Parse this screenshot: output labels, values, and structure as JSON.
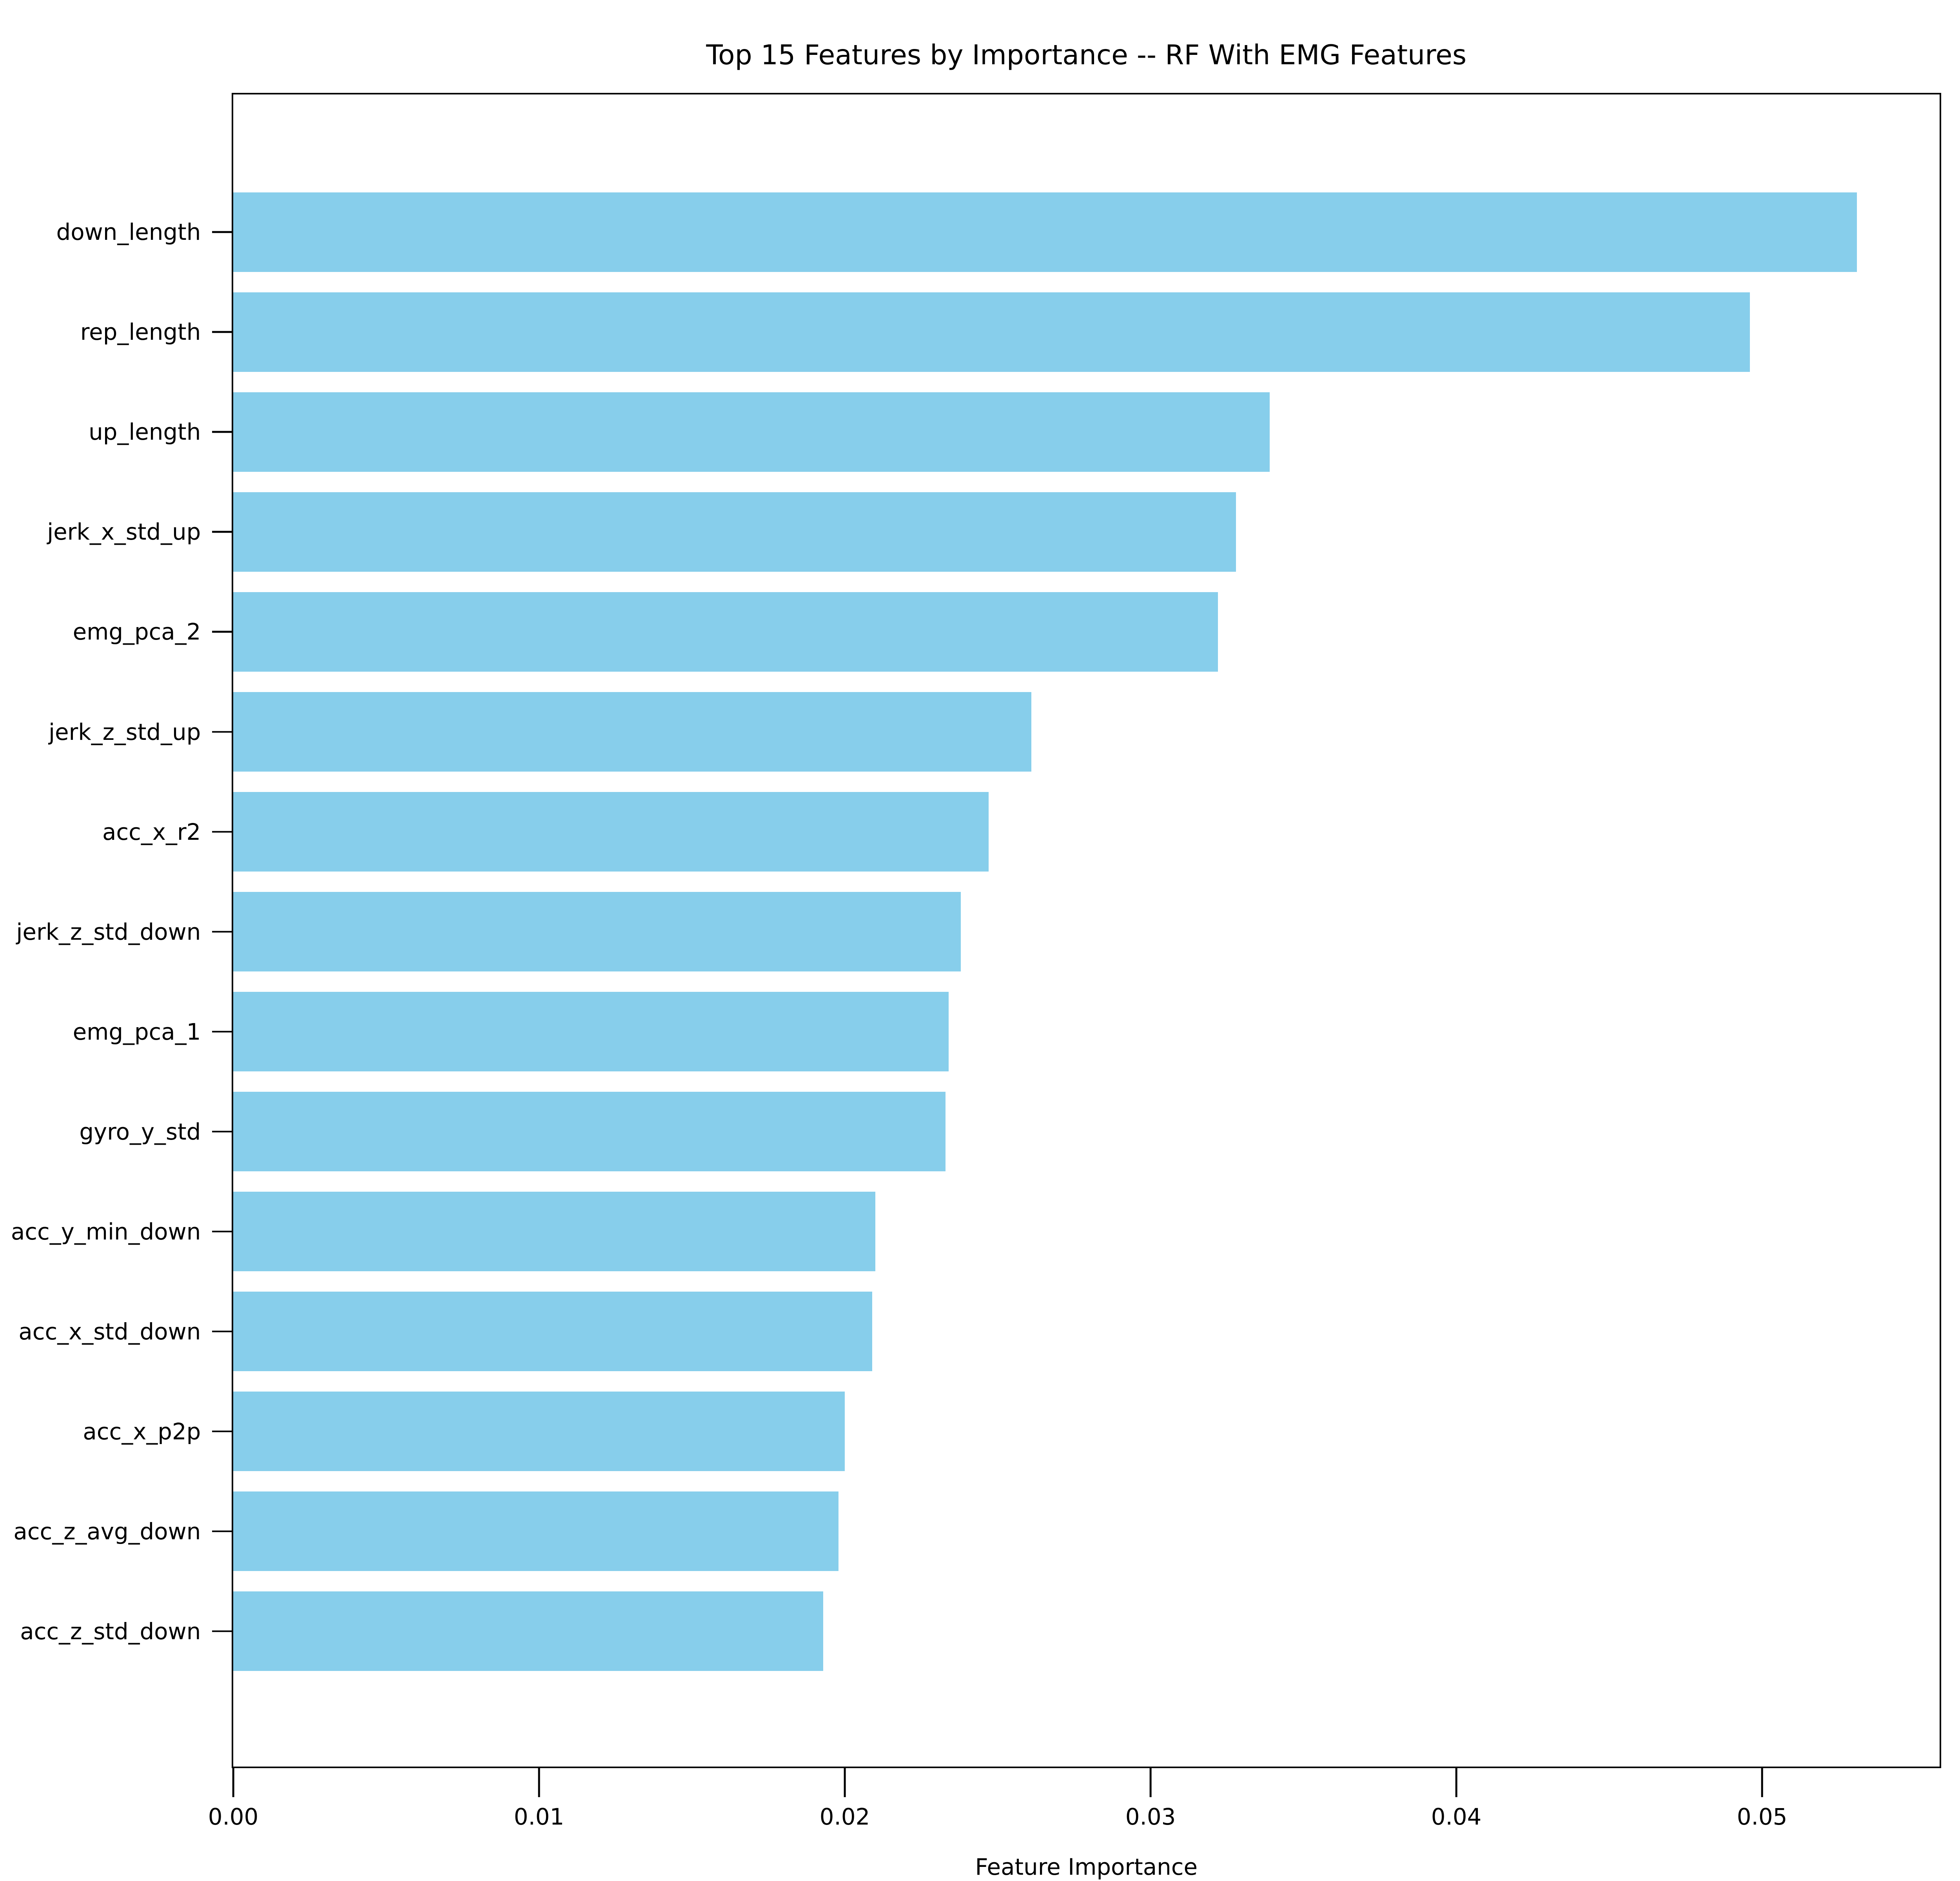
{
  "chart_data": {
    "type": "bar",
    "orientation": "horizontal",
    "title": "Top 15 Features by Importance -- RF With EMG Features",
    "xlabel": "Feature Importance",
    "ylabel": "",
    "categories": [
      "down_length",
      "rep_length",
      "up_length",
      "jerk_x_std_up",
      "emg_pca_2",
      "jerk_z_std_up",
      "acc_x_r2",
      "jerk_z_std_down",
      "emg_pca_1",
      "gyro_y_std",
      "acc_y_min_down",
      "acc_x_std_down",
      "acc_x_p2p",
      "acc_z_avg_down",
      "acc_z_std_down"
    ],
    "values": [
      0.0531,
      0.0496,
      0.0339,
      0.0328,
      0.0322,
      0.0261,
      0.0247,
      0.0238,
      0.0234,
      0.0233,
      0.021,
      0.0209,
      0.02,
      0.0198,
      0.0193
    ],
    "xlim": [
      0,
      0.0558
    ],
    "xticks": [
      "0.00",
      "0.01",
      "0.02",
      "0.03",
      "0.04",
      "0.05"
    ],
    "xtick_values": [
      0.0,
      0.01,
      0.02,
      0.03,
      0.04,
      0.05
    ],
    "bar_color": "#87CEEB",
    "text_color": "#000000",
    "background_color": "#ffffff",
    "grid": false,
    "legend": null
  }
}
